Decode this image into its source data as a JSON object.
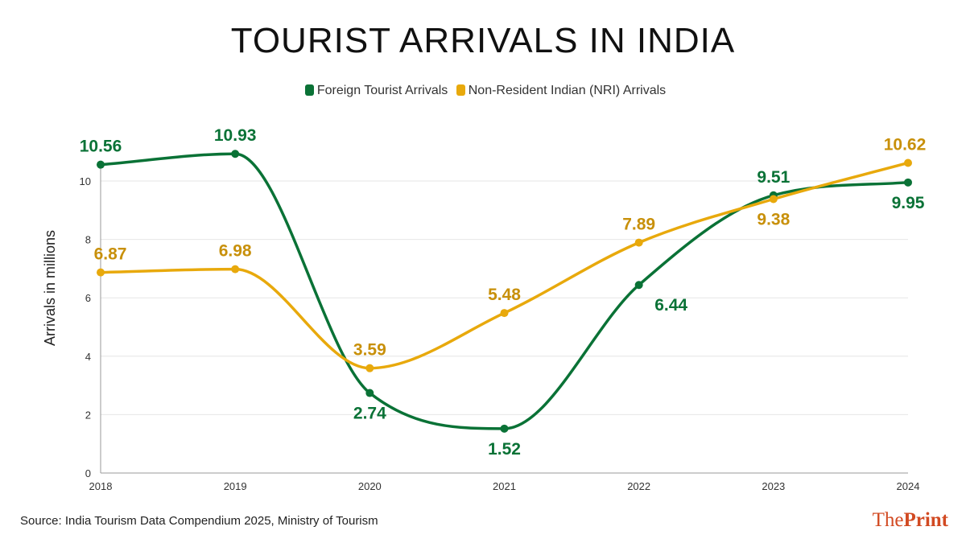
{
  "title": "TOURIST ARRIVALS IN INDIA",
  "source": "Source:  India Tourism Data Compendium 2025, Ministry of Tourism",
  "logo": {
    "part1": "The",
    "part2": "Print"
  },
  "chart_data": {
    "type": "line",
    "title": "TOURIST ARRIVALS IN INDIA",
    "ylabel": "Arrivals in millions",
    "xlabel": "",
    "x": [
      "2018",
      "2019",
      "2020",
      "2021",
      "2022",
      "2023",
      "2024"
    ],
    "ylim": [
      0,
      10.6
    ],
    "yticks": [
      "0",
      "2",
      "4",
      "6",
      "8",
      "10"
    ],
    "grid": true,
    "legend": "top",
    "series": [
      {
        "name": "Foreign Tourist Arrivals",
        "color": "#0a7236",
        "label_color": "#0a7236",
        "values": [
          10.56,
          10.93,
          2.74,
          1.52,
          6.44,
          9.51,
          9.95
        ],
        "labels": [
          "10.56",
          "10.93",
          "2.74",
          "1.52",
          "6.44",
          "9.51",
          "9.95"
        ]
      },
      {
        "name": "Non-Resident Indian (NRI) Arrivals",
        "color": "#e8a90c",
        "label_color": "#c8900a",
        "values": [
          6.87,
          6.98,
          3.59,
          5.48,
          7.89,
          9.38,
          10.62
        ],
        "labels": [
          "6.87",
          "6.98",
          "3.59",
          "5.48",
          "7.89",
          "9.38",
          "10.62"
        ]
      }
    ]
  }
}
